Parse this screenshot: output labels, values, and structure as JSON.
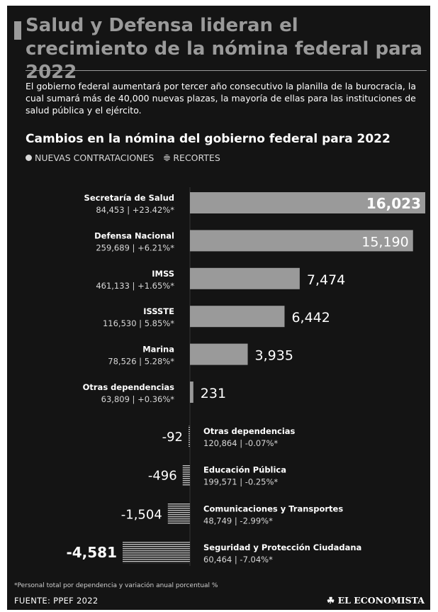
{
  "header": {
    "title": "Salud y Defensa lideran el crecimiento de la nómina federal para 2022",
    "intro": "El gobierno federal aumentará por tercer año consecutivo la planilla de la burocracia, la cual sumará más de 40,000 nuevas plazas, la mayoría de ellas para las instituciones de salud pública y el ejército."
  },
  "legend": {
    "hires_label": "NUEVAS CONTRATACIONES",
    "cuts_label": "RECORTES"
  },
  "footer": {
    "footnote": "*Personal total por dependencia y variación anual porcentual %",
    "source": "FUENTE: PPEF 2022",
    "brand": "EL ECONOMISTA"
  },
  "colors": {
    "background": "#141414",
    "positive_bar": "#9a9a9a",
    "negative_bar_hatch": "#bdbdbd",
    "title": "#9a9a9a"
  },
  "chart_data": {
    "type": "bar",
    "title": "Cambios en la nómina del gobierno federal para 2022",
    "xlabel": "",
    "ylabel": "",
    "grid": false,
    "legend_placement": "top-left",
    "xlim": [
      -4581,
      16023
    ],
    "series": [
      {
        "name": "NUEVAS CONTRATACIONES",
        "items": [
          {
            "category": "Secretaría de Salud",
            "value": 16023,
            "value_label": "16,023",
            "total": "84,453",
            "change": "+23.42%*"
          },
          {
            "category": "Defensa Nacional",
            "value": 15190,
            "value_label": "15,190",
            "total": "259,689",
            "change": "+6.21%*"
          },
          {
            "category": "IMSS",
            "value": 7474,
            "value_label": "7,474",
            "total": "461,133",
            "change": "+1.65%*"
          },
          {
            "category": "ISSSTE",
            "value": 6442,
            "value_label": "6,442",
            "total": "116,530",
            "change": "5.85%*"
          },
          {
            "category": "Marina",
            "value": 3935,
            "value_label": "3,935",
            "total": "78,526",
            "change": "5.28%*"
          },
          {
            "category": "Otras dependencias",
            "value": 231,
            "value_label": "231",
            "total": "63,809",
            "change": "+0.36%*"
          }
        ]
      },
      {
        "name": "RECORTES",
        "items": [
          {
            "category": "Otras dependencias",
            "value": -92,
            "value_label": "-92",
            "total": "120,864",
            "change": "-0.07%*"
          },
          {
            "category": "Educación Pública",
            "value": -496,
            "value_label": "-496",
            "total": "199,571",
            "change": "-0.25%*"
          },
          {
            "category": "Comunicaciones y Transportes",
            "value": -1504,
            "value_label": "-1,504",
            "total": "48,749",
            "change": "-2.99%*"
          },
          {
            "category": "Seguridad y Protección Ciudadana",
            "value": -4581,
            "value_label": "-4,581",
            "total": "60,464",
            "change": "-7.04%*"
          }
        ]
      }
    ]
  }
}
